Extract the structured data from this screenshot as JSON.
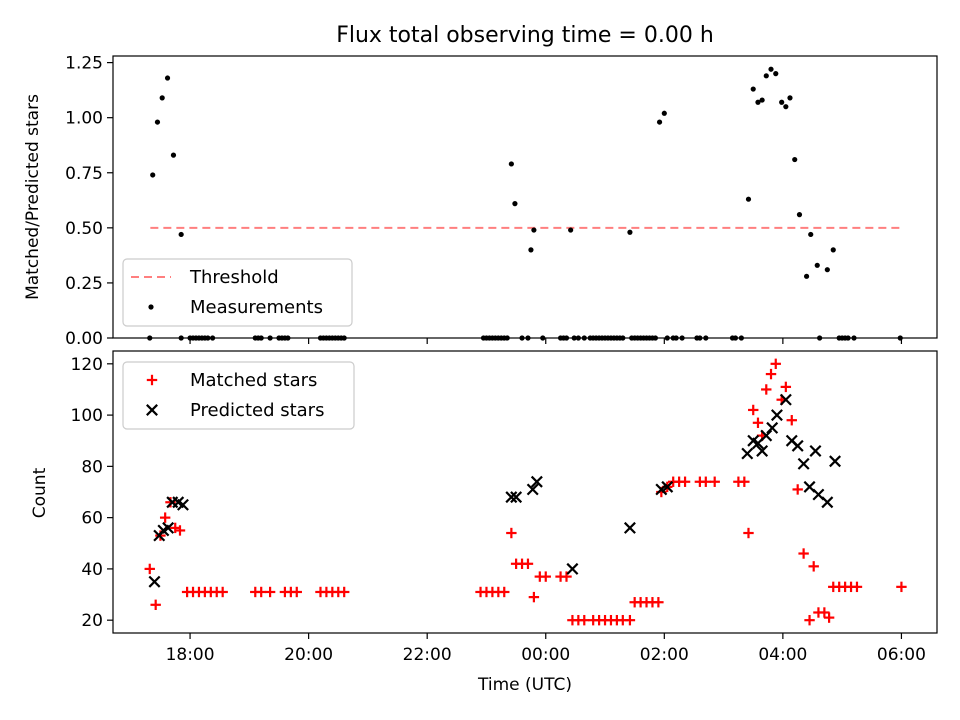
{
  "title": "Flux total observing time = 0.00 h",
  "xlabel": "Time (UTC)",
  "x_ticks": [
    "18:00",
    "20:00",
    "22:00",
    "00:00",
    "02:00",
    "04:00",
    "06:00"
  ],
  "colors": {
    "threshold": "#ff7f7f",
    "measurement": "#000000",
    "matched": "#ff0000",
    "predicted": "#000000"
  },
  "chart_data": [
    {
      "type": "scatter",
      "ylabel": "Matched/Predicted stars",
      "ylim": [
        0,
        1.28
      ],
      "xlim": [
        -1.3,
        12.6
      ],
      "y_ticks": [
        "0.00",
        "0.25",
        "0.50",
        "0.75",
        "1.00",
        "1.25"
      ],
      "threshold": {
        "name": "Threshold",
        "value": 0.5,
        "x_range": [
          -0.67,
          11.99
        ]
      },
      "legend_placement": "lower-left",
      "series": [
        {
          "name": "Measurements",
          "marker": "dot",
          "points": [
            [
              -0.68,
              0
            ],
            [
              -0.63,
              0.74
            ],
            [
              -0.55,
              0.98
            ],
            [
              -0.47,
              1.09
            ],
            [
              -0.38,
              1.18
            ],
            [
              -0.28,
              0.83
            ],
            [
              -0.15,
              0.47
            ],
            [
              -0.15,
              0
            ],
            [
              0.0,
              0
            ],
            [
              0.05,
              0
            ],
            [
              0.1,
              0
            ],
            [
              0.15,
              0
            ],
            [
              0.2,
              0
            ],
            [
              0.25,
              0
            ],
            [
              0.3,
              0
            ],
            [
              0.38,
              0
            ],
            [
              1.1,
              0
            ],
            [
              1.15,
              0
            ],
            [
              1.2,
              0
            ],
            [
              1.35,
              0
            ],
            [
              1.5,
              0
            ],
            [
              1.55,
              0
            ],
            [
              1.6,
              0
            ],
            [
              1.65,
              0
            ],
            [
              2.2,
              0
            ],
            [
              2.25,
              0
            ],
            [
              2.3,
              0
            ],
            [
              2.35,
              0
            ],
            [
              2.4,
              0
            ],
            [
              2.45,
              0
            ],
            [
              2.5,
              0
            ],
            [
              2.55,
              0
            ],
            [
              2.6,
              0
            ],
            [
              4.95,
              0
            ],
            [
              5.0,
              0
            ],
            [
              5.05,
              0
            ],
            [
              5.1,
              0
            ],
            [
              5.15,
              0
            ],
            [
              5.2,
              0
            ],
            [
              5.25,
              0
            ],
            [
              5.3,
              0
            ],
            [
              5.35,
              0
            ],
            [
              5.42,
              0.79
            ],
            [
              5.48,
              0.61
            ],
            [
              5.6,
              0
            ],
            [
              5.7,
              0
            ],
            [
              5.75,
              0.4
            ],
            [
              5.8,
              0.49
            ],
            [
              5.95,
              0
            ],
            [
              6.25,
              0
            ],
            [
              6.3,
              0
            ],
            [
              6.35,
              0
            ],
            [
              6.42,
              0.49
            ],
            [
              6.48,
              0
            ],
            [
              6.55,
              0
            ],
            [
              6.65,
              0
            ],
            [
              6.75,
              0
            ],
            [
              6.8,
              0
            ],
            [
              6.85,
              0
            ],
            [
              6.9,
              0
            ],
            [
              6.95,
              0
            ],
            [
              7.0,
              0
            ],
            [
              7.05,
              0
            ],
            [
              7.1,
              0
            ],
            [
              7.15,
              0
            ],
            [
              7.2,
              0
            ],
            [
              7.25,
              0
            ],
            [
              7.3,
              0
            ],
            [
              7.42,
              0.48
            ],
            [
              7.45,
              0
            ],
            [
              7.5,
              0
            ],
            [
              7.55,
              0
            ],
            [
              7.6,
              0
            ],
            [
              7.65,
              0
            ],
            [
              7.7,
              0
            ],
            [
              7.75,
              0
            ],
            [
              7.8,
              0
            ],
            [
              7.85,
              0
            ],
            [
              7.92,
              0.98
            ],
            [
              8.0,
              1.02
            ],
            [
              8.05,
              0
            ],
            [
              8.15,
              0
            ],
            [
              8.2,
              0
            ],
            [
              8.3,
              0
            ],
            [
              8.55,
              0
            ],
            [
              8.6,
              0
            ],
            [
              8.7,
              0
            ],
            [
              9.15,
              0
            ],
            [
              9.2,
              0
            ],
            [
              9.3,
              0
            ],
            [
              9.42,
              0.63
            ],
            [
              9.5,
              1.13
            ],
            [
              9.58,
              1.07
            ],
            [
              9.65,
              1.08
            ],
            [
              9.72,
              1.19
            ],
            [
              9.8,
              1.22
            ],
            [
              9.88,
              1.2
            ],
            [
              9.98,
              1.07
            ],
            [
              10.05,
              1.05
            ],
            [
              10.12,
              1.09
            ],
            [
              10.2,
              0.81
            ],
            [
              10.28,
              0.56
            ],
            [
              10.4,
              0.28
            ],
            [
              10.47,
              0.47
            ],
            [
              10.58,
              0.33
            ],
            [
              10.62,
              0
            ],
            [
              10.75,
              0.31
            ],
            [
              10.85,
              0.4
            ],
            [
              10.95,
              0
            ],
            [
              11.0,
              0
            ],
            [
              11.05,
              0
            ],
            [
              11.1,
              0
            ],
            [
              11.2,
              0
            ],
            [
              11.98,
              0
            ]
          ]
        }
      ]
    },
    {
      "type": "scatter",
      "ylabel": "Count",
      "ylim": [
        15,
        125
      ],
      "xlim": [
        -1.3,
        12.6
      ],
      "y_ticks": [
        "20",
        "40",
        "60",
        "80",
        "100",
        "120"
      ],
      "legend_placement": "upper-left",
      "series": [
        {
          "name": "Matched stars",
          "marker": "plus",
          "points": [
            [
              -0.68,
              40
            ],
            [
              -0.58,
              26
            ],
            [
              -0.5,
              53
            ],
            [
              -0.42,
              60
            ],
            [
              -0.33,
              66
            ],
            [
              -0.25,
              56
            ],
            [
              -0.17,
              55
            ],
            [
              -0.05,
              31
            ],
            [
              0.05,
              31
            ],
            [
              0.15,
              31
            ],
            [
              0.25,
              31
            ],
            [
              0.35,
              31
            ],
            [
              0.45,
              31
            ],
            [
              0.55,
              31
            ],
            [
              1.1,
              31
            ],
            [
              1.2,
              31
            ],
            [
              1.35,
              31
            ],
            [
              1.6,
              31
            ],
            [
              1.7,
              31
            ],
            [
              1.8,
              31
            ],
            [
              2.2,
              31
            ],
            [
              2.3,
              31
            ],
            [
              2.4,
              31
            ],
            [
              2.5,
              31
            ],
            [
              2.6,
              31
            ],
            [
              4.9,
              31
            ],
            [
              5.0,
              31
            ],
            [
              5.1,
              31
            ],
            [
              5.2,
              31
            ],
            [
              5.3,
              31
            ],
            [
              5.42,
              54
            ],
            [
              5.5,
              42
            ],
            [
              5.6,
              42
            ],
            [
              5.7,
              42
            ],
            [
              5.8,
              29
            ],
            [
              5.9,
              37
            ],
            [
              6.0,
              37
            ],
            [
              6.25,
              37
            ],
            [
              6.35,
              37
            ],
            [
              6.45,
              20
            ],
            [
              6.55,
              20
            ],
            [
              6.65,
              20
            ],
            [
              6.8,
              20
            ],
            [
              6.9,
              20
            ],
            [
              7.0,
              20
            ],
            [
              7.1,
              20
            ],
            [
              7.2,
              20
            ],
            [
              7.3,
              20
            ],
            [
              7.42,
              20
            ],
            [
              7.5,
              27
            ],
            [
              7.6,
              27
            ],
            [
              7.7,
              27
            ],
            [
              7.8,
              27
            ],
            [
              7.9,
              27
            ],
            [
              7.95,
              70
            ],
            [
              8.05,
              72
            ],
            [
              8.15,
              74
            ],
            [
              8.25,
              74
            ],
            [
              8.35,
              74
            ],
            [
              8.6,
              74
            ],
            [
              8.7,
              74
            ],
            [
              8.85,
              74
            ],
            [
              9.25,
              74
            ],
            [
              9.35,
              74
            ],
            [
              9.42,
              54
            ],
            [
              9.5,
              102
            ],
            [
              9.58,
              97
            ],
            [
              9.65,
              92
            ],
            [
              9.72,
              110
            ],
            [
              9.8,
              116
            ],
            [
              9.88,
              120
            ],
            [
              9.98,
              106
            ],
            [
              10.05,
              111
            ],
            [
              10.15,
              98
            ],
            [
              10.25,
              71
            ],
            [
              10.35,
              46
            ],
            [
              10.45,
              20
            ],
            [
              10.52,
              41
            ],
            [
              10.6,
              23
            ],
            [
              10.7,
              23
            ],
            [
              10.78,
              21
            ],
            [
              10.85,
              33
            ],
            [
              10.95,
              33
            ],
            [
              11.05,
              33
            ],
            [
              11.15,
              33
            ],
            [
              11.25,
              33
            ],
            [
              12.0,
              33
            ]
          ]
        },
        {
          "name": "Predicted stars",
          "marker": "x",
          "points": [
            [
              -0.6,
              35
            ],
            [
              -0.52,
              53
            ],
            [
              -0.45,
              55
            ],
            [
              -0.37,
              56
            ],
            [
              -0.3,
              66
            ],
            [
              -0.2,
              66
            ],
            [
              -0.12,
              65
            ],
            [
              5.42,
              68
            ],
            [
              5.5,
              68
            ],
            [
              5.78,
              71
            ],
            [
              5.85,
              74
            ],
            [
              6.45,
              40
            ],
            [
              7.42,
              56
            ],
            [
              7.95,
              71
            ],
            [
              8.05,
              72
            ],
            [
              9.4,
              85
            ],
            [
              9.5,
              90
            ],
            [
              9.58,
              89
            ],
            [
              9.65,
              86
            ],
            [
              9.72,
              92
            ],
            [
              9.82,
              95
            ],
            [
              9.9,
              100
            ],
            [
              10.05,
              106
            ],
            [
              10.15,
              90
            ],
            [
              10.25,
              88
            ],
            [
              10.35,
              81
            ],
            [
              10.45,
              72
            ],
            [
              10.55,
              86
            ],
            [
              10.6,
              69
            ],
            [
              10.75,
              66
            ],
            [
              10.88,
              82
            ]
          ]
        }
      ]
    }
  ]
}
